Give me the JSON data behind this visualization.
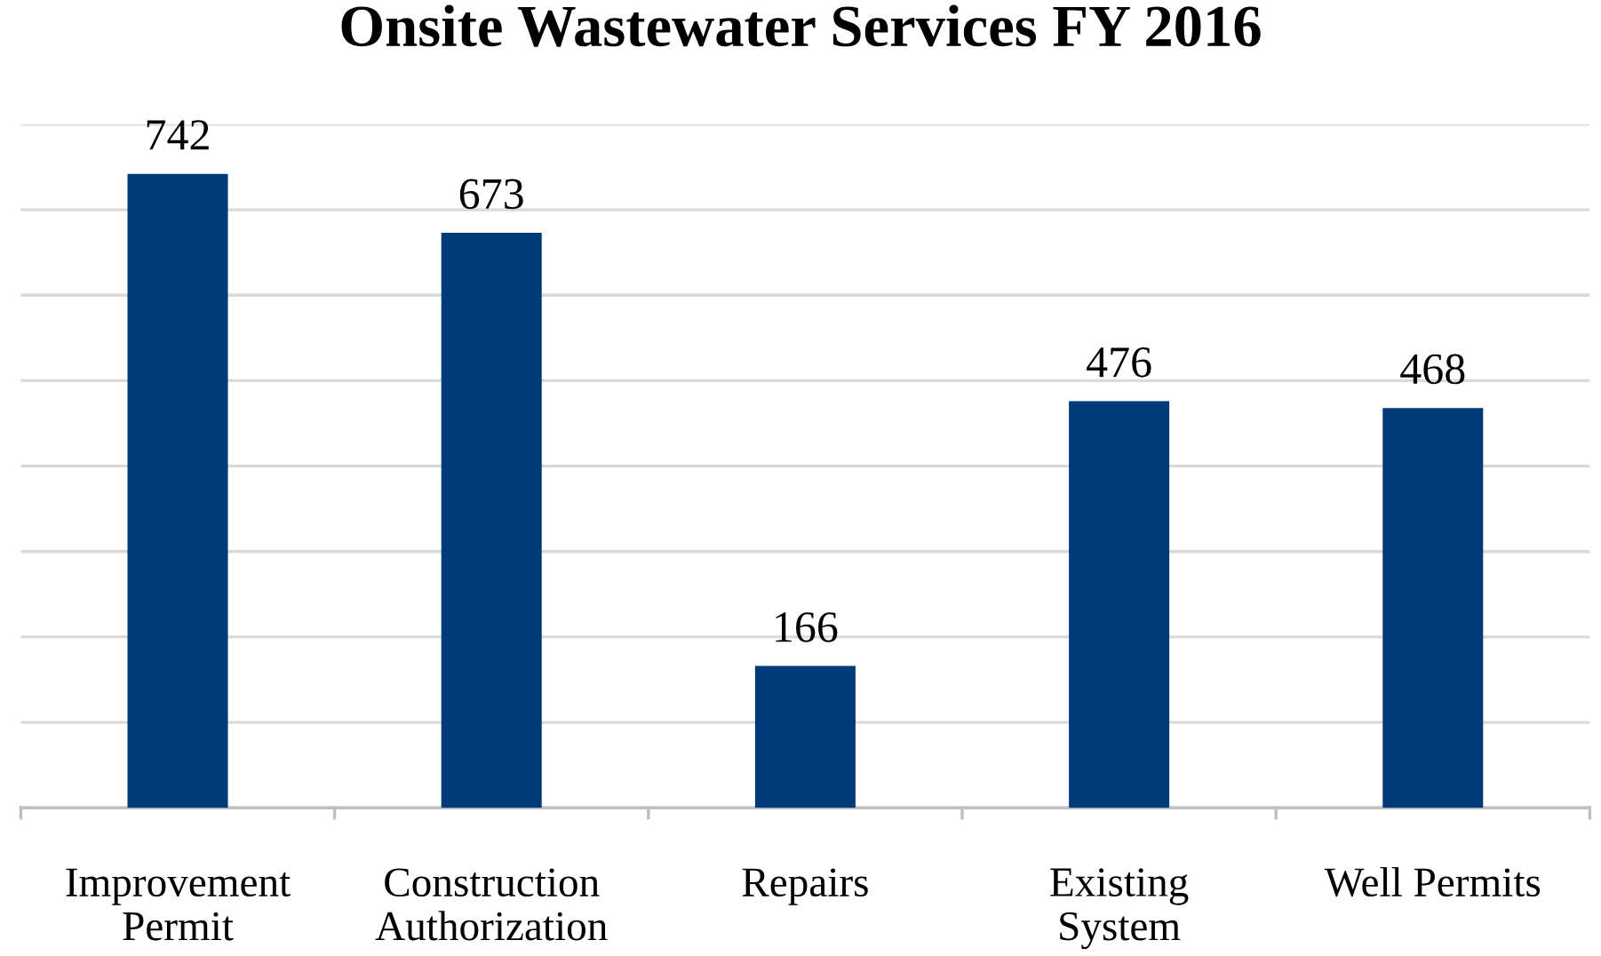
{
  "chart_data": {
    "type": "bar",
    "title": "Onsite Wastewater Services FY 2016",
    "categories": [
      "Improvement\nPermit",
      "Construction\nAuthorization",
      "Repairs",
      "Existing\nSystem",
      "Well Permits"
    ],
    "values": [
      742,
      673,
      166,
      476,
      468
    ],
    "color": "#003a78",
    "ylim": [
      0,
      800
    ],
    "yticks": [
      {
        "value": 0,
        "label": null
      },
      {
        "value": 100,
        "label": null
      },
      {
        "value": 200,
        "label": null
      },
      {
        "value": 300,
        "label": null
      },
      {
        "value": 400,
        "label": null
      },
      {
        "value": 500,
        "label": null
      },
      {
        "value": 600,
        "label": null
      },
      {
        "value": 700,
        "label": null
      },
      {
        "value": 800,
        "label": null
      }
    ],
    "grid": "y",
    "data_labels": true,
    "tick_labels": "x"
  }
}
